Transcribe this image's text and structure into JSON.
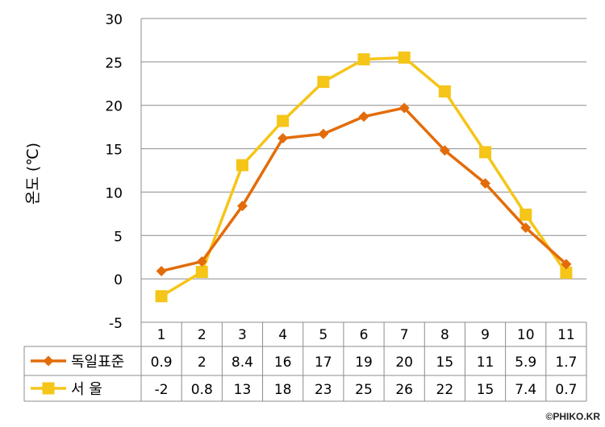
{
  "chart_data": {
    "type": "line",
    "ylabel": "온도 (℃)",
    "categories": [
      "1",
      "2",
      "3",
      "4",
      "5",
      "6",
      "7",
      "8",
      "9",
      "10",
      "11"
    ],
    "ylim": [
      -5,
      30
    ],
    "yticks": [
      "-5",
      "0",
      "5",
      "10",
      "15",
      "20",
      "25",
      "30"
    ],
    "grid": true,
    "legend": "data-table",
    "series": [
      {
        "name": "독일표준",
        "color": "#E36C0A",
        "marker": "diamond",
        "values": [
          0.9,
          2,
          8.4,
          16.2,
          16.7,
          18.7,
          19.7,
          14.8,
          11,
          5.9,
          1.7
        ],
        "labels": [
          "0.9",
          "2",
          "8.4",
          "16",
          "17",
          "19",
          "20",
          "15",
          "11",
          "5.9",
          "1.7"
        ]
      },
      {
        "name": "서 울",
        "color": "#F5C518",
        "marker": "square",
        "values": [
          -2,
          0.8,
          13.1,
          18.2,
          22.7,
          25.3,
          25.5,
          21.6,
          14.6,
          7.4,
          0.7
        ],
        "labels": [
          "-2",
          "0.8",
          "13",
          "18",
          "23",
          "25",
          "26",
          "22",
          "15",
          "7.4",
          "0.7"
        ]
      }
    ]
  },
  "watermark": "©PHIKO.KR"
}
